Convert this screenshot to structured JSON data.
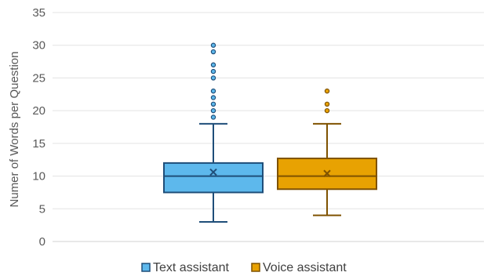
{
  "chart_data": {
    "type": "box",
    "ylabel": "Numer of Words per Question",
    "ylim": [
      0,
      35
    ],
    "yticks": [
      0,
      5,
      10,
      15,
      20,
      25,
      30,
      35
    ],
    "grid": true,
    "legend_position": "bottom",
    "series": [
      {
        "name": "Text assistant",
        "color": "#5DB8EC",
        "edge_color": "#1F4E79",
        "whisker_low": 3,
        "q1": 7.5,
        "median": 10,
        "q3": 12,
        "whisker_high": 18,
        "mean": 10.6,
        "outliers": [
          19,
          20,
          21,
          22,
          23,
          25,
          26,
          27,
          29,
          30
        ]
      },
      {
        "name": "Voice assistant",
        "color": "#E8A202",
        "edge_color": "#7F5200",
        "whisker_low": 4,
        "q1": 8,
        "median": 10,
        "q3": 12.7,
        "whisker_high": 18,
        "mean": 10.4,
        "outliers": [
          20,
          21,
          23
        ]
      }
    ]
  }
}
